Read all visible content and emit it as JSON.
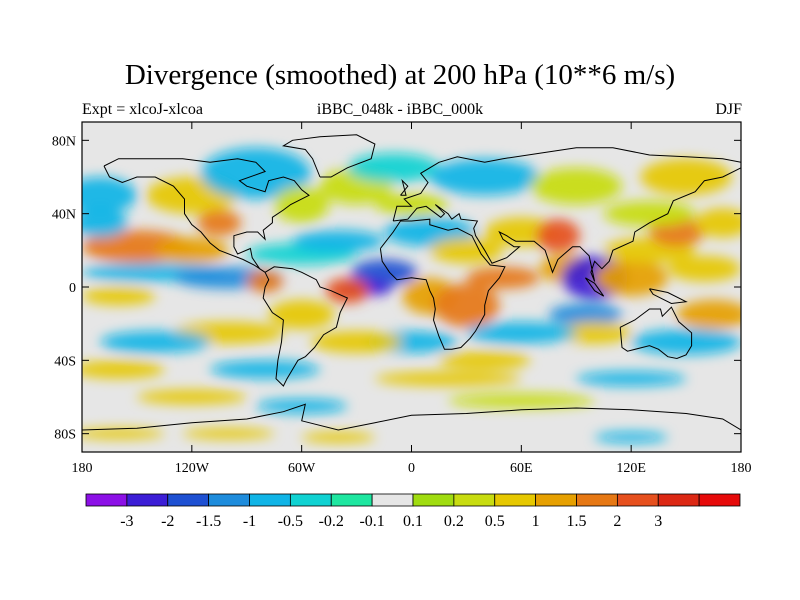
{
  "title": "Divergence (smoothed) at 200 hPa (10**6 m/s)",
  "subtitle_left": "Expt = xlcoJ-xlcoa",
  "subtitle_center": "iBBC_048k - iBBC_000k",
  "subtitle_right": "DJF",
  "map": {
    "lon_range": [
      -180,
      180
    ],
    "lat_range": [
      -90,
      90
    ],
    "x_ticks": [
      {
        "value": -180,
        "label": "180"
      },
      {
        "value": -120,
        "label": "120W"
      },
      {
        "value": -60,
        "label": "60W"
      },
      {
        "value": 0,
        "label": "0"
      },
      {
        "value": 60,
        "label": "60E"
      },
      {
        "value": 120,
        "label": "120E"
      },
      {
        "value": 180,
        "label": "180"
      }
    ],
    "y_ticks": [
      {
        "value": 80,
        "label": "80N"
      },
      {
        "value": 40,
        "label": "40N"
      },
      {
        "value": 0,
        "label": "0"
      },
      {
        "value": -40,
        "label": "40S"
      },
      {
        "value": -80,
        "label": "80S"
      }
    ],
    "background_color": "#e6e6e6"
  },
  "colorbar": {
    "colors": [
      "#8c10e6",
      "#3c1ed6",
      "#1e50d2",
      "#1e8cdc",
      "#10b4e6",
      "#10d2d2",
      "#1ee6a0",
      "#e6e6e6",
      "#a0dc10",
      "#c8dc10",
      "#e6c800",
      "#e6a000",
      "#e67814",
      "#e6501e",
      "#dc2814",
      "#e60a0a"
    ],
    "labels": [
      "-3",
      "-2",
      "-1.5",
      "-1",
      "-0.5",
      "-0.2",
      "-0.1",
      "0.1",
      "0.2",
      "0.5",
      "1",
      "1.5",
      "2",
      "3"
    ]
  }
}
